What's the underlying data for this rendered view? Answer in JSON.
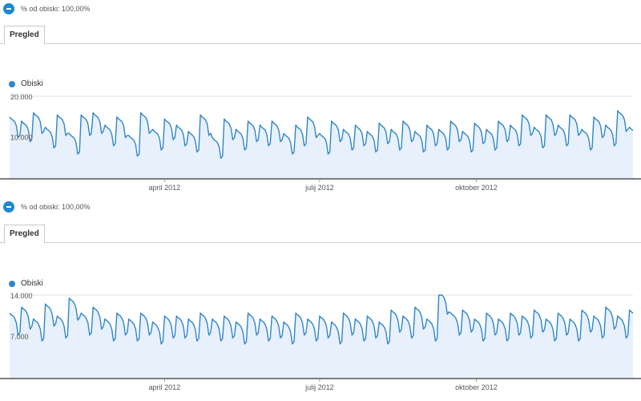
{
  "colors": {
    "series": "#2f86c6",
    "fill": "#e7f0fb",
    "axis": "#333333",
    "grid": "#e3e3e3"
  },
  "panels": [
    {
      "segment_label": "% od obiski: 100,00%",
      "tab_label": "Pregled",
      "legend_label": "Obiski"
    },
    {
      "segment_label": "% od obiski: 100,00%",
      "tab_label": "Pregled",
      "legend_label": "Obiski"
    }
  ],
  "chart_data": [
    {
      "type": "area",
      "series": [
        {
          "name": "Obiski"
        }
      ],
      "y_ticks": [
        {
          "value": 10000,
          "label": "10.000"
        },
        {
          "value": 20000,
          "label": "20.000"
        }
      ],
      "x_ticks": [
        {
          "day": 91,
          "label": "april 2012"
        },
        {
          "day": 182,
          "label": "julij 2012"
        },
        {
          "day": 274,
          "label": "oktober 2012"
        }
      ],
      "x_range_days": [
        0,
        366
      ],
      "ylim": [
        0,
        20000
      ],
      "values_per_week": [
        13000,
        12000,
        14000,
        10500,
        13500,
        9000,
        13500,
        14000,
        11000,
        13000,
        8500,
        14000,
        10000,
        12500,
        11000,
        9500,
        13500,
        8000,
        12500,
        10000,
        12000,
        11000,
        12000,
        9000,
        11000,
        13000,
        9000,
        12000,
        10000,
        11000,
        9500,
        11500,
        10000,
        12000,
        9500,
        11000,
        10000,
        12000,
        9500,
        11500,
        10000,
        12000,
        11000,
        13500,
        10500,
        13500,
        11000,
        13500,
        10000,
        13000,
        11000,
        14500,
        10500,
        13000
      ],
      "weekday_offsets": [
        2000,
        1500,
        1200,
        800,
        -200,
        -3000,
        -2500
      ]
    },
    {
      "type": "area",
      "series": [
        {
          "name": "Obiski"
        }
      ],
      "y_ticks": [
        {
          "value": 7000,
          "label": "7.000"
        },
        {
          "value": 14000,
          "label": "14.000"
        }
      ],
      "x_ticks": [
        {
          "day": 91,
          "label": "april 2012"
        },
        {
          "day": 182,
          "label": "julij 2012"
        },
        {
          "day": 274,
          "label": "oktober 2012"
        }
      ],
      "x_range_days": [
        0,
        366
      ],
      "ylim": [
        0,
        14000
      ],
      "values_per_week": [
        9500,
        10500,
        8500,
        11000,
        9000,
        12000,
        9500,
        10500,
        8500,
        9500,
        8500,
        9500,
        8000,
        9000,
        9000,
        8500,
        9500,
        8500,
        9000,
        8000,
        9500,
        8500,
        9000,
        8000,
        9500,
        8500,
        9000,
        8000,
        9500,
        8500,
        9000,
        8000,
        10000,
        9000,
        10500,
        8500,
        13000,
        9500,
        10000,
        8500,
        9500,
        8500,
        9500,
        9000,
        10000,
        8500,
        9500,
        8500,
        10000,
        9000,
        10500,
        9000,
        10000,
        9000
      ],
      "weekday_offsets": [
        1500,
        1200,
        1000,
        600,
        -200,
        -2200,
        -1800
      ]
    }
  ]
}
